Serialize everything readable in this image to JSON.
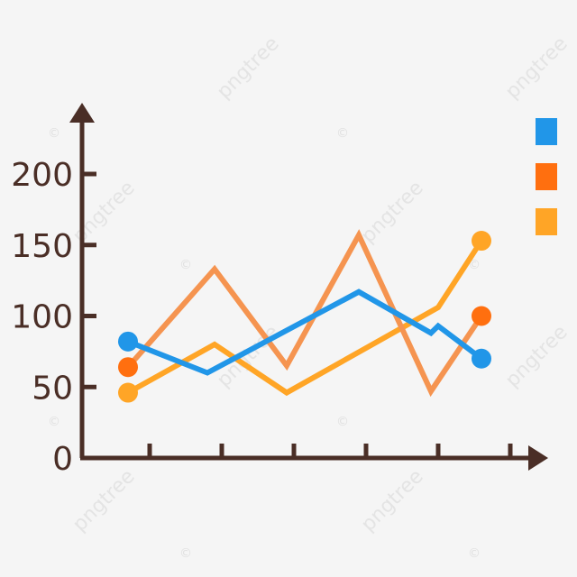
{
  "watermark": {
    "text": "pngtree",
    "mark": "©"
  },
  "chart_data": {
    "type": "line",
    "title": "",
    "xlabel": "",
    "ylabel": "",
    "ylim": [
      0,
      230
    ],
    "yticks": [
      {
        "value": 0,
        "label": "0"
      },
      {
        "value": 50,
        "label": "50"
      },
      {
        "value": 100,
        "label": "100"
      },
      {
        "value": 150,
        "label": "150"
      },
      {
        "value": 200,
        "label": "200"
      }
    ],
    "x_axis": {
      "ticks": 6,
      "tick_labels": []
    },
    "grid": false,
    "legend": {
      "placement": "right",
      "entries": [
        {
          "color": "#2196e8"
        },
        {
          "color": "#ff6f0f"
        },
        {
          "color": "#ffa526"
        }
      ]
    },
    "series": [
      {
        "color": "#2196e8",
        "points": [
          [
            0.7,
            82
          ],
          [
            1.8,
            60
          ],
          [
            3.9,
            117
          ],
          [
            4.9,
            88
          ],
          [
            5.0,
            93
          ],
          [
            5.6,
            70
          ]
        ]
      },
      {
        "color": "#f59450",
        "marker_color": "#ff6f0f",
        "points": [
          [
            0.7,
            64
          ],
          [
            1.9,
            133
          ],
          [
            2.9,
            65
          ],
          [
            3.9,
            157
          ],
          [
            4.9,
            47
          ],
          [
            5.6,
            100
          ]
        ]
      },
      {
        "color": "#ffa526",
        "points": [
          [
            0.7,
            46
          ],
          [
            1.9,
            80
          ],
          [
            2.9,
            46
          ],
          [
            5.0,
            106
          ],
          [
            5.6,
            153
          ]
        ]
      }
    ]
  }
}
